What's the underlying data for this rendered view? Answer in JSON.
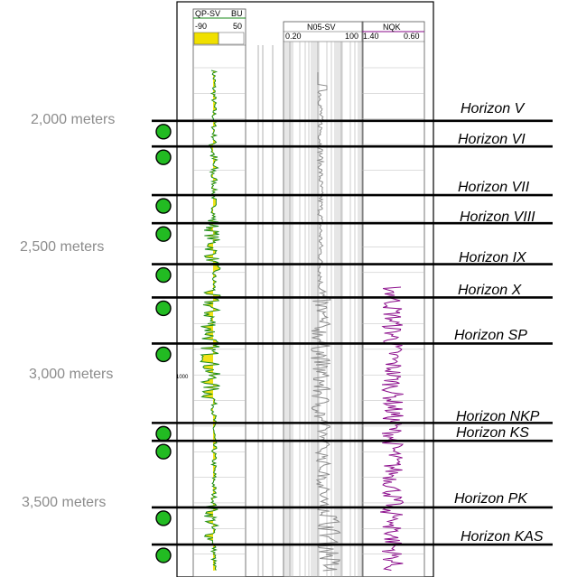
{
  "tracks": {
    "gr": {
      "title": "QP-SV",
      "unit": "BU",
      "min": "-90",
      "max": "50",
      "color": "#1a8a1a",
      "fill": "#f0e000"
    },
    "res": {
      "title": "N05-SV",
      "min": "0.20",
      "max": "100"
    },
    "nqk": {
      "title": "NQK",
      "min": "1.40",
      "max": "0.60",
      "color": "#8a0a8a"
    }
  },
  "depth_labels": [
    {
      "text": "2,000 meters",
      "depth_m": 2000
    },
    {
      "text": "2,500 meters",
      "depth_m": 2500
    },
    {
      "text": "3,000 meters",
      "depth_m": 3000
    },
    {
      "text": "3,500 meters",
      "depth_m": 3500
    }
  ],
  "scale_label": "1000",
  "horizons": [
    {
      "label": "Horizon V",
      "depth_m": 2010
    },
    {
      "label": "Horizon VI",
      "depth_m": 2110
    },
    {
      "label": "Horizon VII",
      "depth_m": 2300
    },
    {
      "label": "Horizon VIII",
      "depth_m": 2410
    },
    {
      "label": "Horizon IX",
      "depth_m": 2570
    },
    {
      "label": "Horizon X",
      "depth_m": 2700
    },
    {
      "label": "Horizon SP",
      "depth_m": 2880
    },
    {
      "label": "Horizon NKP",
      "depth_m": 3190
    },
    {
      "label": "Horizon KS",
      "depth_m": 3260
    },
    {
      "label": "Horizon PK",
      "depth_m": 3520
    },
    {
      "label": "Horizon KAS",
      "depth_m": 3665
    }
  ],
  "marker_color": "#22bb22"
}
